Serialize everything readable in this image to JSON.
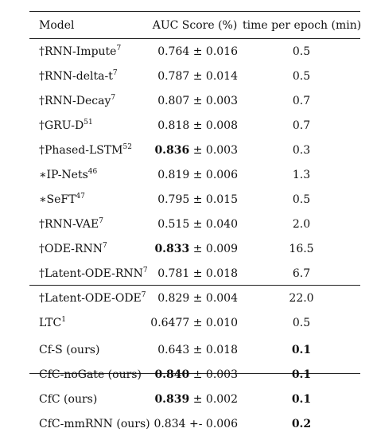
{
  "header": {
    "model": "Model",
    "auc": "AUC Score (%)",
    "time": "time per epoch (min)"
  },
  "rows": [
    {
      "prefix": "†",
      "name": "RNN-Impute",
      "ref": "7",
      "auc_val": "0.764",
      "pm": "± 0.016",
      "time": "0.5",
      "auc_bold": false,
      "time_bold": false
    },
    {
      "prefix": "†",
      "name": "RNN-delta-t",
      "ref": "7",
      "auc_val": "0.787",
      "pm": "± 0.014",
      "time": "0.5",
      "auc_bold": false,
      "time_bold": false
    },
    {
      "prefix": "†",
      "name": "RNN-Decay",
      "ref": "7",
      "auc_val": "0.807",
      "pm": "± 0.003",
      "time": "0.7",
      "auc_bold": false,
      "time_bold": false
    },
    {
      "prefix": "†",
      "name": "GRU-D",
      "ref": "51",
      "auc_val": "0.818",
      "pm": "± 0.008",
      "time": "0.7",
      "auc_bold": false,
      "time_bold": false
    },
    {
      "prefix": "†",
      "name": "Phased-LSTM",
      "ref": "52",
      "auc_val": "0.836",
      "pm": "± 0.003",
      "time": "0.3",
      "auc_bold": true,
      "time_bold": false
    },
    {
      "prefix": "∗",
      "name": "IP-Nets",
      "ref": "46",
      "auc_val": "0.819",
      "pm": "± 0.006",
      "time": "1.3",
      "auc_bold": false,
      "time_bold": false
    },
    {
      "prefix": "∗",
      "name": "SeFT",
      "ref": "47",
      "auc_val": "0.795",
      "pm": "± 0.015",
      "time": "0.5",
      "auc_bold": false,
      "time_bold": false
    },
    {
      "prefix": "†",
      "name": "RNN-VAE",
      "ref": "7",
      "auc_val": "0.515",
      "pm": "± 0.040",
      "time": "2.0",
      "auc_bold": false,
      "time_bold": false
    },
    {
      "prefix": "†",
      "name": "ODE-RNN",
      "ref": "7",
      "auc_val": "0.833",
      "pm": "± 0.009",
      "time": "16.5",
      "auc_bold": true,
      "time_bold": false
    },
    {
      "prefix": "†",
      "name": "Latent-ODE-RNN",
      "ref": "7",
      "auc_val": "0.781",
      "pm": "± 0.018",
      "time": "6.7",
      "auc_bold": false,
      "time_bold": false
    },
    {
      "prefix": "†",
      "name": "Latent-ODE-ODE",
      "ref": "7",
      "auc_val": "0.829",
      "pm": "± 0.004",
      "time": "22.0",
      "auc_bold": false,
      "time_bold": false
    },
    {
      "prefix": "",
      "name": "LTC",
      "ref": "1",
      "auc_val": "0.6477",
      "pm": "± 0.010",
      "time": "0.5",
      "auc_bold": false,
      "time_bold": false
    }
  ],
  "ours_rows": [
    {
      "prefix": "",
      "name": "Cf-S (ours)",
      "ref": "",
      "auc_val": "0.643",
      "pm": "± 0.018",
      "time": "0.1",
      "auc_bold": false,
      "time_bold": true
    },
    {
      "prefix": "",
      "name": "CfC-noGate (ours)",
      "ref": "",
      "auc_val": "0.840",
      "pm": "± 0.003",
      "time": "0.1",
      "auc_bold": true,
      "time_bold": true
    },
    {
      "prefix": "",
      "name": "CfC (ours)",
      "ref": "",
      "auc_val": "0.839",
      "pm": "± 0.002",
      "time": "0.1",
      "auc_bold": true,
      "time_bold": true
    },
    {
      "prefix": "",
      "name": "CfC-mmRNN (ours)",
      "ref": "",
      "auc_val": "0.834",
      "pm": "+- 0.006",
      "time": "0.2",
      "auc_bold": false,
      "time_bold": true
    }
  ]
}
